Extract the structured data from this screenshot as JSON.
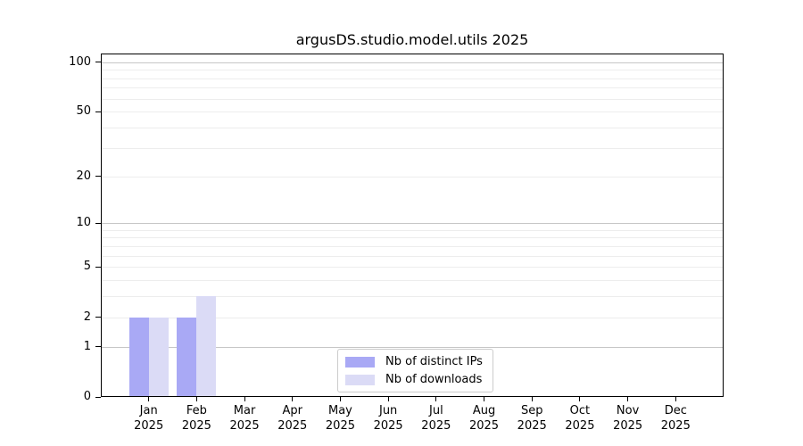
{
  "chart_data": {
    "type": "bar",
    "title": "argusDS.studio.model.utils 2025",
    "year": "2025",
    "month_labels": [
      "Jan",
      "Feb",
      "Mar",
      "Apr",
      "May",
      "Jun",
      "Jul",
      "Aug",
      "Sep",
      "Oct",
      "Nov",
      "Dec"
    ],
    "categories": [
      "Jan 2025",
      "Feb 2025",
      "Mar 2025",
      "Apr 2025",
      "May 2025",
      "Jun 2025",
      "Jul 2025",
      "Aug 2025",
      "Sep 2025",
      "Oct 2025",
      "Nov 2025",
      "Dec 2025"
    ],
    "series": [
      {
        "name": "Nb of distinct IPs",
        "color": "#a9a9f5",
        "values": [
          2,
          2,
          0,
          0,
          0,
          0,
          0,
          0,
          0,
          0,
          0,
          0
        ]
      },
      {
        "name": "Nb of downloads",
        "color": "#dbdbf6",
        "values": [
          2,
          3,
          0,
          0,
          0,
          0,
          0,
          0,
          0,
          0,
          0,
          0
        ]
      }
    ],
    "yscale": "log1p",
    "ylim": [
      0,
      113
    ],
    "yticks": [
      0,
      1,
      2,
      5,
      10,
      20,
      50,
      100
    ],
    "minor_yticks": [
      2,
      3,
      4,
      5,
      6,
      7,
      8,
      9,
      20,
      30,
      40,
      50,
      60,
      70,
      80,
      90
    ],
    "major_grid_yticks": [
      1,
      10,
      100
    ],
    "grid": true,
    "legend": {
      "position": "bottom-center",
      "entries": [
        {
          "label": "Nb of distinct IPs",
          "color": "#a9a9f5"
        },
        {
          "label": "Nb of downloads",
          "color": "#dbdbf6"
        }
      ]
    },
    "colors": {
      "minor_grid": "#ededed",
      "major_grid": "#c6c6c6",
      "spine": "#000000",
      "text": "#000000",
      "background": "#ffffff"
    }
  }
}
